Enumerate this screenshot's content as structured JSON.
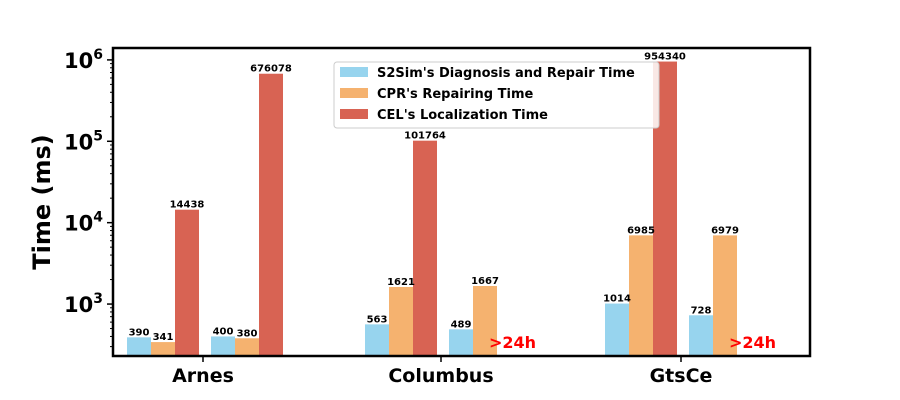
{
  "chart_data": {
    "type": "bar",
    "ylabel": "Time (ms)",
    "yscale": "log",
    "ylim": [
      230,
      1400000
    ],
    "yticks": [
      {
        "value": 1000,
        "base": "10",
        "exp": "3"
      },
      {
        "value": 10000,
        "base": "10",
        "exp": "4"
      },
      {
        "value": 100000,
        "base": "10",
        "exp": "5"
      },
      {
        "value": 1000000,
        "base": "10",
        "exp": "6"
      }
    ],
    "legend_position": "top-center",
    "grid": false,
    "categories": [
      "Arnes",
      "Columbus",
      "GtsCe"
    ],
    "series": [
      {
        "name": "S2Sim's Diagnosis and Repair Time",
        "color": "#97d4ee"
      },
      {
        "name": "CPR's Repairing Time",
        "color": "#f5b26f"
      },
      {
        "name": "CEL's Localization Time",
        "color": "#d86353"
      }
    ],
    "groups": [
      {
        "category": "Arnes",
        "clusters": [
          {
            "values": [
              390,
              341,
              14438
            ],
            "labels": [
              "390",
              "341",
              "14438"
            ]
          },
          {
            "values": [
              400,
              380,
              676078
            ],
            "labels": [
              "400",
              "380",
              "676078"
            ]
          }
        ]
      },
      {
        "category": "Columbus",
        "clusters": [
          {
            "values": [
              563,
              1621,
              101764
            ],
            "labels": [
              "563",
              "1621",
              "101764"
            ]
          },
          {
            "values": [
              489,
              1667,
              null
            ],
            "labels": [
              "489",
              "1667",
              ">24h"
            ]
          }
        ]
      },
      {
        "category": "GtsCe",
        "clusters": [
          {
            "values": [
              1014,
              6985,
              954340
            ],
            "labels": [
              "1014",
              "6985",
              "954340"
            ]
          },
          {
            "values": [
              728,
              6979,
              null
            ],
            "labels": [
              "728",
              "6979",
              ">24h"
            ]
          }
        ]
      }
    ],
    "timeout_label_color": "#ff0000"
  }
}
